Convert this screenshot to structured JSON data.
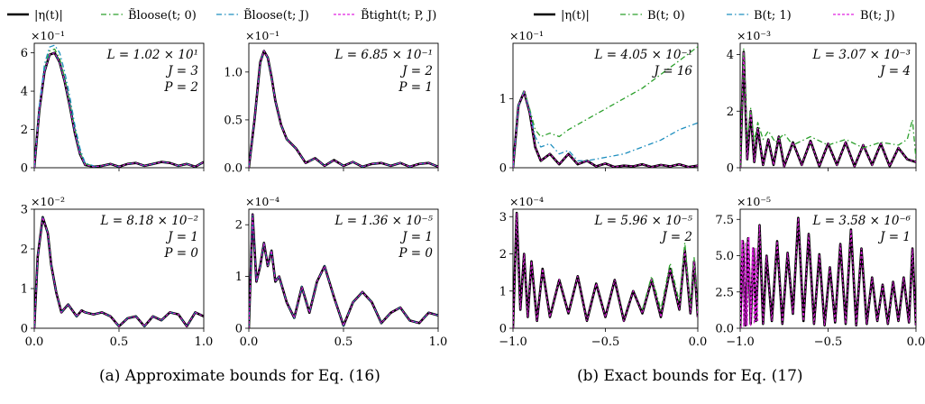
{
  "figure_a": {
    "caption": "(a) Approximate bounds for Eq. (16)",
    "legend": [
      "|η(t)|",
      "B̃loose(t; 0)",
      "B̃loose(t; J)",
      "B̃tight(t; P, J)"
    ]
  },
  "figure_b": {
    "caption": "(b) Exact bounds for Eq. (17)",
    "legend": [
      "|η(t)|",
      "B(t; 0)",
      "B(t; 1)",
      "B(t; J)"
    ]
  },
  "colors": {
    "eta": "#000000",
    "green": "#2ca02c",
    "cyan": "#1f8fbf",
    "magenta": "#e020e0"
  },
  "chart_data": [
    {
      "type": "line",
      "group": "a",
      "multiplier": "×10⁻¹",
      "xlim": [
        0,
        1
      ],
      "ylim": [
        0,
        6.5
      ],
      "yticks": [
        "0",
        "2",
        "4",
        "6"
      ],
      "yticks_v": [
        0,
        2,
        4,
        6
      ],
      "xticks": [],
      "annotation": [
        "L = 1.02 × 10¹",
        "J = 3",
        "P = 2"
      ],
      "series": [
        {
          "style": "eta",
          "x": [
            0,
            0.03,
            0.06,
            0.09,
            0.12,
            0.15,
            0.18,
            0.21,
            0.24,
            0.27,
            0.3,
            0.35,
            0.4,
            0.45,
            0.5,
            0.55,
            0.6,
            0.65,
            0.7,
            0.75,
            0.8,
            0.85,
            0.9,
            0.95,
            1.0
          ],
          "y": [
            0,
            3.0,
            5.0,
            5.9,
            6.0,
            5.5,
            4.5,
            3.2,
            1.8,
            0.7,
            0.15,
            0.05,
            0.1,
            0.2,
            0.05,
            0.2,
            0.25,
            0.1,
            0.2,
            0.3,
            0.25,
            0.1,
            0.2,
            0.05,
            0.3
          ]
        },
        {
          "style": "green",
          "x": [
            0,
            0.03,
            0.06,
            0.09,
            0.12,
            0.15,
            0.18,
            0.21,
            0.24,
            0.27,
            0.3,
            0.35
          ],
          "y": [
            0,
            3.1,
            5.2,
            6.1,
            6.2,
            5.7,
            4.7,
            3.4,
            2.0,
            0.8,
            0.2,
            0.1
          ]
        },
        {
          "style": "cyan",
          "x": [
            0,
            0.03,
            0.06,
            0.09,
            0.12,
            0.15,
            0.18,
            0.21,
            0.24,
            0.27,
            0.3,
            0.35
          ],
          "y": [
            0,
            3.2,
            5.4,
            6.3,
            6.4,
            6.0,
            5.0,
            3.7,
            2.2,
            1.0,
            0.25,
            0.1
          ]
        }
      ]
    },
    {
      "type": "line",
      "group": "a",
      "multiplier": "×10⁻¹",
      "xlim": [
        0,
        1
      ],
      "ylim": [
        0,
        1.3
      ],
      "yticks": [
        "0.0",
        "0.5",
        "1.0"
      ],
      "yticks_v": [
        0,
        0.5,
        1.0
      ],
      "xticks": [],
      "annotation": [
        "L = 6.85 × 10⁻¹",
        "J = 2",
        "P = 1"
      ],
      "series": [
        {
          "style": "eta",
          "x": [
            0,
            0.03,
            0.06,
            0.08,
            0.1,
            0.12,
            0.14,
            0.17,
            0.2,
            0.25,
            0.3,
            0.35,
            0.4,
            0.45,
            0.5,
            0.55,
            0.6,
            0.65,
            0.7,
            0.75,
            0.8,
            0.85,
            0.9,
            0.95,
            1.0
          ],
          "y": [
            0,
            0.5,
            1.1,
            1.22,
            1.15,
            0.95,
            0.7,
            0.45,
            0.3,
            0.2,
            0.05,
            0.1,
            0.02,
            0.08,
            0.02,
            0.06,
            0.01,
            0.04,
            0.05,
            0.02,
            0.05,
            0.01,
            0.04,
            0.05,
            0.01
          ]
        }
      ]
    },
    {
      "type": "line",
      "group": "a",
      "multiplier": "×10⁻²",
      "xlim": [
        0,
        1
      ],
      "ylim": [
        0,
        3
      ],
      "yticks": [
        "0",
        "1",
        "2",
        "3"
      ],
      "yticks_v": [
        0,
        1,
        2,
        3
      ],
      "xticks": [
        "0.0",
        "0.5",
        "1.0"
      ],
      "xticks_v": [
        0,
        0.5,
        1.0
      ],
      "annotation": [
        "L = 8.18 × 10⁻²",
        "J = 1",
        "P = 0"
      ],
      "series": [
        {
          "style": "eta",
          "x": [
            0,
            0.02,
            0.05,
            0.08,
            0.1,
            0.13,
            0.16,
            0.2,
            0.25,
            0.28,
            0.3,
            0.35,
            0.4,
            0.45,
            0.5,
            0.55,
            0.6,
            0.65,
            0.7,
            0.75,
            0.8,
            0.85,
            0.9,
            0.95,
            1.0
          ],
          "y": [
            0,
            1.8,
            2.8,
            2.4,
            1.6,
            0.9,
            0.4,
            0.6,
            0.3,
            0.45,
            0.4,
            0.35,
            0.4,
            0.3,
            0.05,
            0.25,
            0.3,
            0.05,
            0.3,
            0.2,
            0.4,
            0.35,
            0.05,
            0.4,
            0.3
          ]
        }
      ]
    },
    {
      "type": "line",
      "group": "a",
      "multiplier": "×10⁻⁴",
      "xlim": [
        0,
        1
      ],
      "ylim": [
        0,
        2.3
      ],
      "yticks": [
        "0",
        "1",
        "2"
      ],
      "yticks_v": [
        0,
        1,
        2
      ],
      "xticks": [
        "0.0",
        "0.5",
        "1.0"
      ],
      "xticks_v": [
        0,
        0.5,
        1.0
      ],
      "annotation": [
        "L = 1.36 × 10⁻⁵",
        "J = 1",
        "P = 0"
      ],
      "series": [
        {
          "style": "eta",
          "x": [
            0,
            0.02,
            0.04,
            0.06,
            0.08,
            0.1,
            0.12,
            0.14,
            0.16,
            0.2,
            0.24,
            0.28,
            0.32,
            0.36,
            0.4,
            0.45,
            0.5,
            0.55,
            0.6,
            0.65,
            0.7,
            0.75,
            0.8,
            0.85,
            0.9,
            0.95,
            1.0
          ],
          "y": [
            0,
            2.2,
            0.9,
            1.2,
            1.65,
            1.2,
            1.5,
            0.9,
            1.0,
            0.5,
            0.2,
            0.8,
            0.3,
            0.9,
            1.2,
            0.6,
            0.05,
            0.5,
            0.7,
            0.5,
            0.1,
            0.3,
            0.4,
            0.15,
            0.1,
            0.3,
            0.25
          ]
        }
      ]
    },
    {
      "type": "line",
      "group": "b",
      "multiplier": "×10⁻¹",
      "xlim": [
        -1,
        0
      ],
      "ylim": [
        0,
        1.8
      ],
      "yticks": [
        "0",
        "1"
      ],
      "yticks_v": [
        0,
        1
      ],
      "xticks": [],
      "annotation": [
        "L = 4.05 × 10⁻¹",
        "J = 16"
      ],
      "series": [
        {
          "style": "eta",
          "x": [
            -1,
            -0.97,
            -0.94,
            -0.91,
            -0.88,
            -0.85,
            -0.8,
            -0.75,
            -0.7,
            -0.65,
            -0.6,
            -0.55,
            -0.5,
            -0.45,
            -0.4,
            -0.35,
            -0.3,
            -0.25,
            -0.2,
            -0.15,
            -0.1,
            -0.05,
            0
          ],
          "y": [
            0,
            0.9,
            1.1,
            0.8,
            0.3,
            0.1,
            0.2,
            0.05,
            0.2,
            0.05,
            0.1,
            0.02,
            0.06,
            0.01,
            0.03,
            0.02,
            0.05,
            0.01,
            0.04,
            0.02,
            0.05,
            0.01,
            0.03
          ]
        },
        {
          "style": "green",
          "x": [
            -1,
            -0.97,
            -0.94,
            -0.91,
            -0.88,
            -0.85,
            -0.8,
            -0.75,
            -0.7,
            -0.6,
            -0.5,
            -0.4,
            -0.3,
            -0.2,
            -0.1,
            0
          ],
          "y": [
            0,
            0.9,
            1.12,
            0.85,
            0.55,
            0.45,
            0.5,
            0.45,
            0.55,
            0.7,
            0.85,
            1.0,
            1.15,
            1.35,
            1.55,
            1.75
          ]
        },
        {
          "style": "cyan",
          "x": [
            -1,
            -0.97,
            -0.94,
            -0.91,
            -0.88,
            -0.85,
            -0.8,
            -0.75,
            -0.7,
            -0.65,
            -0.6,
            -0.5,
            -0.4,
            -0.3,
            -0.2,
            -0.1,
            0
          ],
          "y": [
            0,
            0.9,
            1.1,
            0.82,
            0.45,
            0.3,
            0.35,
            0.2,
            0.25,
            0.1,
            0.1,
            0.15,
            0.2,
            0.3,
            0.4,
            0.55,
            0.65
          ]
        }
      ]
    },
    {
      "type": "line",
      "group": "b",
      "multiplier": "×10⁻³",
      "xlim": [
        -1,
        0
      ],
      "ylim": [
        0,
        4.4
      ],
      "yticks": [
        "0",
        "2",
        "4"
      ],
      "yticks_v": [
        0,
        2,
        4
      ],
      "xticks": [],
      "annotation": [
        "L = 3.07 × 10⁻³",
        "J = 4"
      ],
      "series": [
        {
          "style": "eta",
          "x": [
            -1,
            -0.98,
            -0.96,
            -0.94,
            -0.92,
            -0.9,
            -0.87,
            -0.84,
            -0.81,
            -0.78,
            -0.75,
            -0.7,
            -0.65,
            -0.6,
            -0.55,
            -0.5,
            -0.45,
            -0.4,
            -0.35,
            -0.3,
            -0.25,
            -0.2,
            -0.15,
            -0.1,
            -0.05,
            0
          ],
          "y": [
            0,
            4.1,
            0.3,
            2.0,
            0.2,
            1.4,
            0.1,
            1.0,
            0.1,
            1.1,
            0.05,
            0.9,
            0.1,
            0.95,
            0.05,
            0.85,
            0.1,
            0.9,
            0.05,
            0.8,
            0.1,
            0.85,
            0.05,
            0.7,
            0.3,
            0.2
          ]
        },
        {
          "style": "green",
          "x": [
            -1,
            -0.98,
            -0.96,
            -0.94,
            -0.92,
            -0.9,
            -0.87,
            -0.84,
            -0.8,
            -0.75,
            -0.7,
            -0.6,
            -0.5,
            -0.4,
            -0.3,
            -0.2,
            -0.1,
            -0.05,
            -0.02,
            0
          ],
          "y": [
            0,
            4.2,
            1.0,
            2.1,
            0.9,
            1.6,
            1.0,
            1.3,
            0.9,
            1.2,
            0.8,
            1.1,
            0.8,
            1.0,
            0.7,
            0.9,
            0.8,
            1.0,
            1.7,
            0.3
          ]
        }
      ]
    },
    {
      "type": "line",
      "group": "b",
      "multiplier": "×10⁻⁴",
      "xlim": [
        -1,
        0
      ],
      "ylim": [
        0,
        3.2
      ],
      "yticks": [
        "0",
        "1",
        "2",
        "3"
      ],
      "yticks_v": [
        0,
        1,
        2,
        3
      ],
      "xticks": [
        "−1.0",
        "−0.5",
        "0.0"
      ],
      "xticks_v": [
        -1,
        -0.5,
        0
      ],
      "annotation": [
        "L = 5.96 × 10⁻⁵",
        "J = 2"
      ],
      "series": [
        {
          "style": "eta",
          "x": [
            -1,
            -0.98,
            -0.96,
            -0.94,
            -0.92,
            -0.9,
            -0.87,
            -0.84,
            -0.8,
            -0.75,
            -0.7,
            -0.65,
            -0.6,
            -0.55,
            -0.5,
            -0.45,
            -0.4,
            -0.35,
            -0.3,
            -0.25,
            -0.2,
            -0.15,
            -0.1,
            -0.07,
            -0.04,
            -0.02,
            0
          ],
          "y": [
            0,
            3.1,
            0.5,
            2.0,
            0.3,
            1.8,
            0.2,
            1.6,
            0.3,
            1.3,
            0.4,
            1.4,
            0.2,
            1.2,
            0.3,
            1.3,
            0.2,
            1.0,
            0.4,
            1.3,
            0.3,
            1.6,
            0.5,
            2.1,
            0.4,
            1.8,
            0.3
          ]
        },
        {
          "style": "green",
          "x": [
            -0.3,
            -0.25,
            -0.2,
            -0.15,
            -0.1,
            -0.07,
            -0.04,
            -0.02,
            0
          ],
          "y": [
            0.5,
            1.4,
            0.5,
            1.75,
            0.7,
            2.3,
            0.6,
            1.9,
            0.4
          ]
        }
      ]
    },
    {
      "type": "line",
      "group": "b",
      "multiplier": "×10⁻⁵",
      "xlim": [
        -1,
        0
      ],
      "ylim": [
        0,
        8.2
      ],
      "yticks": [
        "0.0",
        "2.5",
        "5.0",
        "7.5"
      ],
      "yticks_v": [
        0,
        2.5,
        5,
        7.5
      ],
      "xticks": [
        "−1.0",
        "−0.5",
        "0.0"
      ],
      "xticks_v": [
        -1,
        -0.5,
        0
      ],
      "annotation": [
        "L = 3.58 × 10⁻⁶",
        "J = 1"
      ],
      "series": [
        {
          "style": "eta",
          "x": [
            -1,
            -0.985,
            -0.97,
            -0.955,
            -0.94,
            -0.925,
            -0.91,
            -0.89,
            -0.87,
            -0.85,
            -0.82,
            -0.79,
            -0.76,
            -0.73,
            -0.7,
            -0.67,
            -0.64,
            -0.61,
            -0.58,
            -0.55,
            -0.52,
            -0.49,
            -0.46,
            -0.43,
            -0.4,
            -0.37,
            -0.34,
            -0.31,
            -0.28,
            -0.25,
            -0.22,
            -0.19,
            -0.16,
            -0.13,
            -0.1,
            -0.07,
            -0.04,
            -0.02,
            0
          ],
          "y": [
            0,
            6.0,
            0.2,
            6.2,
            0.3,
            5.5,
            0.5,
            7.1,
            0.3,
            5.0,
            0.5,
            6.0,
            0.3,
            5.2,
            1.0,
            7.6,
            0.5,
            6.5,
            0.3,
            5.1,
            0.2,
            4.2,
            0.4,
            5.8,
            0.3,
            6.8,
            0.2,
            5.5,
            0.3,
            3.5,
            0.5,
            3.0,
            0.3,
            3.2,
            0.5,
            3.5,
            0.4,
            5.5,
            0.2
          ]
        },
        {
          "style": "magenta",
          "x": [
            -1,
            -0.99,
            -0.98,
            -0.97,
            -0.96,
            -0.95,
            -0.94,
            -0.93,
            -0.92,
            -0.91,
            -0.9
          ],
          "y": [
            0,
            6.1,
            0.1,
            5.9,
            0.2,
            6.3,
            0.2,
            5.6,
            0.3,
            5.5,
            0.4
          ]
        }
      ]
    }
  ]
}
